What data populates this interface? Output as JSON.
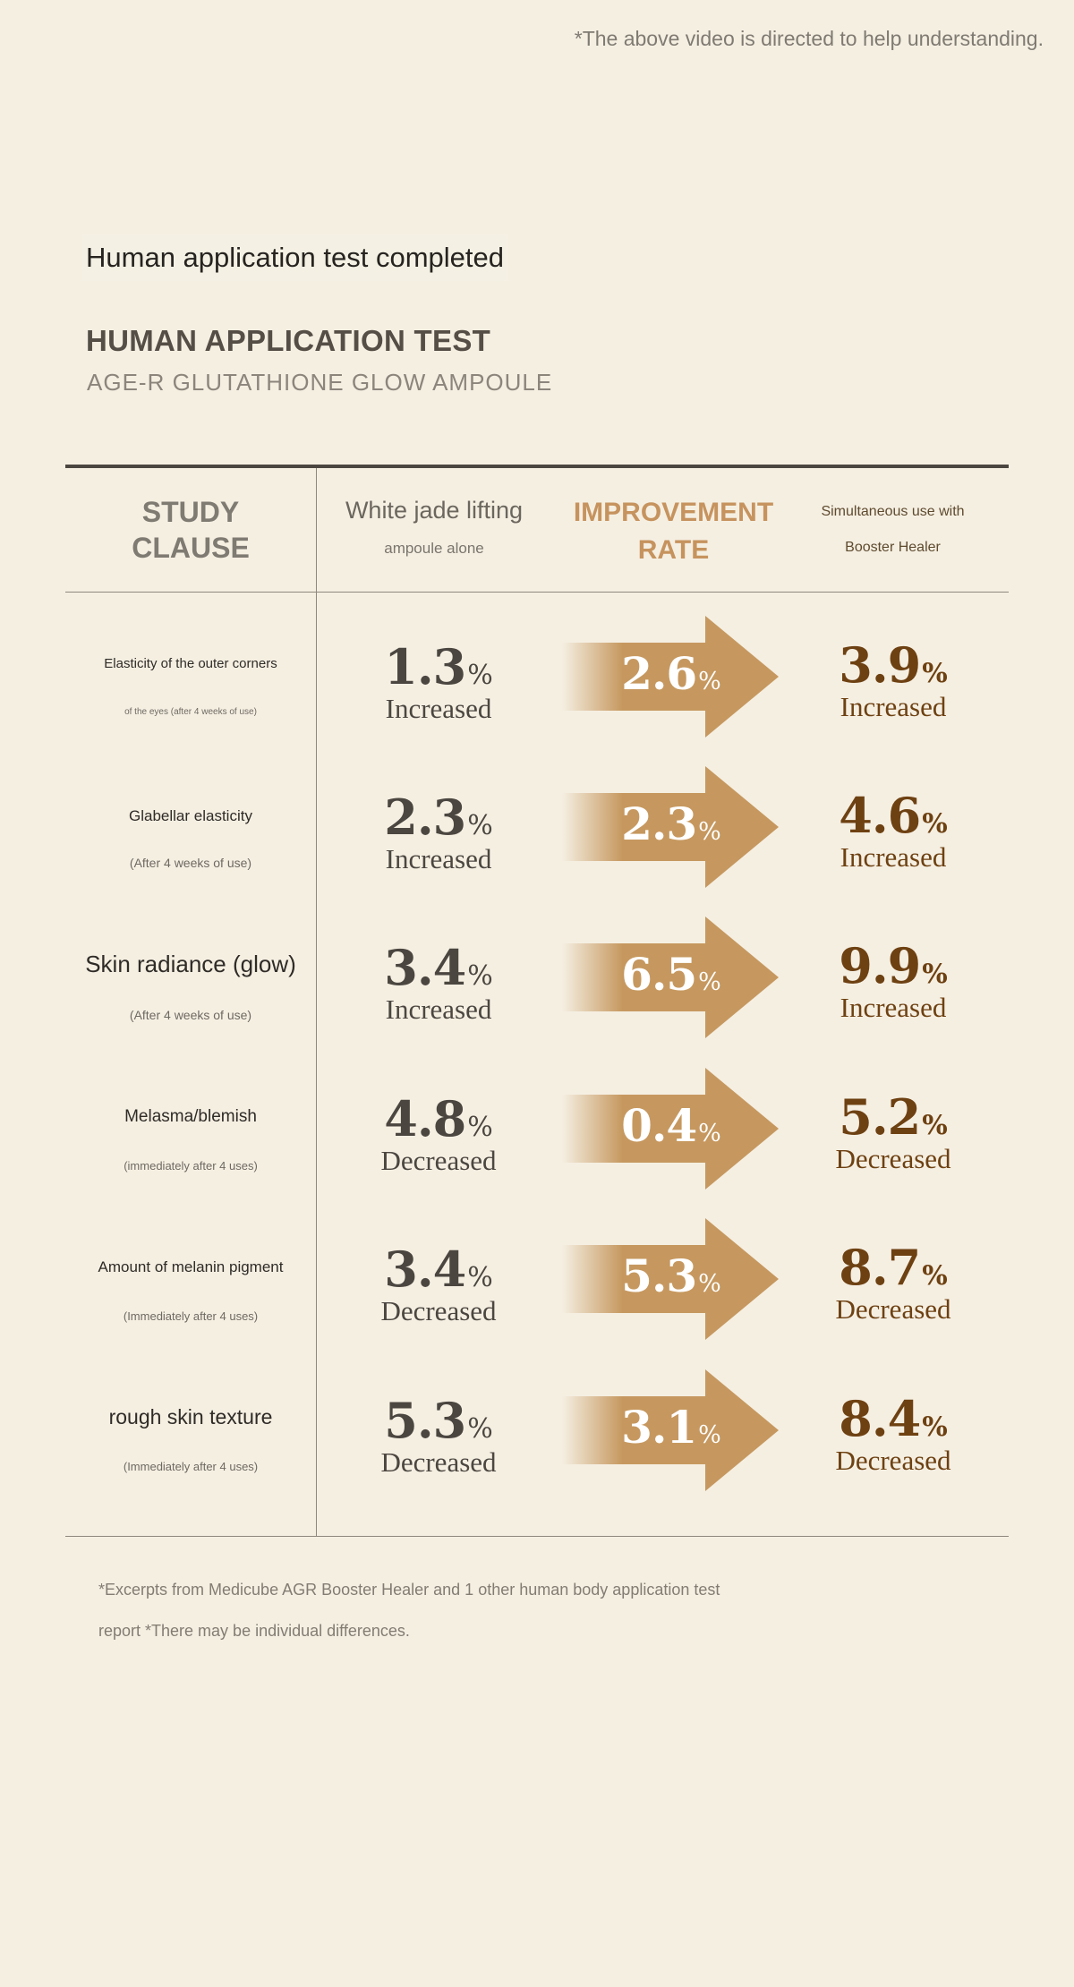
{
  "top_note": "*The above video is directed to help understanding.",
  "badge": "Human application test completed",
  "test_title": "HUMAN APPLICATION TEST",
  "product_name": "AGE-R GLUTATHIONE GLOW AMPOULE",
  "headers": {
    "clause_line1": "STUDY",
    "clause_line2": "CLAUSE",
    "alone_line1": "White jade lifting",
    "alone_line2": "ampoule alone",
    "rate_line1": "IMPROVEMENT",
    "rate_line2": "RATE",
    "sim_line1": "Simultaneous use with",
    "sim_line2": "Booster Healer"
  },
  "percent_sign": "%",
  "colors": {
    "background": "#f5efe2",
    "arrow": "#c6985f",
    "accent_header": "#c6935e",
    "sim_value": "#6e4112"
  },
  "rows": [
    {
      "clause": "Elasticity of the outer corners",
      "sub": "of the eyes (after 4 weeks of use)",
      "alone": "1.3",
      "rate": "2.6",
      "sim": "3.9",
      "status": "Increased"
    },
    {
      "clause": "Glabellar elasticity",
      "sub": "(After 4 weeks of use)",
      "alone": "2.3",
      "rate": "2.3",
      "sim": "4.6",
      "status": "Increased"
    },
    {
      "clause": "Skin radiance (glow)",
      "sub": "(After 4 weeks of use)",
      "alone": "3.4",
      "rate": "6.5",
      "sim": "9.9",
      "status": "Increased"
    },
    {
      "clause": "Melasma/blemish",
      "sub": "(immediately after 4 uses)",
      "alone": "4.8",
      "rate": "0.4",
      "sim": "5.2",
      "status": "Decreased"
    },
    {
      "clause": "Amount of melanin pigment",
      "sub": "(Immediately after 4 uses)",
      "alone": "3.4",
      "rate": "5.3",
      "sim": "8.7",
      "status": "Decreased"
    },
    {
      "clause": "rough skin texture",
      "sub": "(Immediately after 4 uses)",
      "alone": "5.3",
      "rate": "3.1",
      "sim": "8.4",
      "status": "Decreased"
    }
  ],
  "footnote_line1": "*Excerpts from Medicube AGR Booster Healer and 1 other human body application test",
  "footnote_line2": "report *There may be individual differences."
}
